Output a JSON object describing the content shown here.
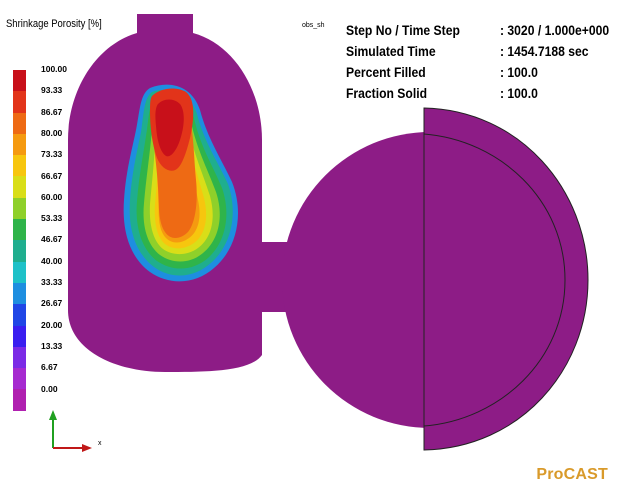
{
  "legend": {
    "title": "Shrinkage Porosity [%]",
    "ticks": [
      "100.00",
      "93.33",
      "86.67",
      "80.00",
      "73.33",
      "66.67",
      "60.00",
      "53.33",
      "46.67",
      "40.00",
      "33.33",
      "26.67",
      "20.00",
      "13.33",
      "6.67",
      "0.00"
    ],
    "colors": [
      "#c8101a",
      "#e2341a",
      "#ee6a14",
      "#f59a10",
      "#f7c60e",
      "#d9de18",
      "#8fd02a",
      "#2fb44a",
      "#1fae8e",
      "#1ec1c8",
      "#1e8ee0",
      "#2046e6",
      "#3a1ef0",
      "#7b2ae6",
      "#a62ad0",
      "#b020b0"
    ]
  },
  "observer_label": "obs_sh",
  "status": {
    "rows": [
      {
        "label": "Step No / Time Step",
        "value": ": 3020 / 1.000e+000"
      },
      {
        "label": "Simulated Time",
        "value": ": 1454.7188 sec"
      },
      {
        "label": "Percent Filled",
        "value": ": 100.0"
      },
      {
        "label": "Fraction Solid",
        "value": ": 100.0"
      }
    ]
  },
  "axes": {
    "x_label": "x",
    "x_color": "#c01818",
    "y_color": "#20a020"
  },
  "colors": {
    "part": "#8d1c86",
    "outline": "#222222"
  },
  "brand": "ProCAST"
}
